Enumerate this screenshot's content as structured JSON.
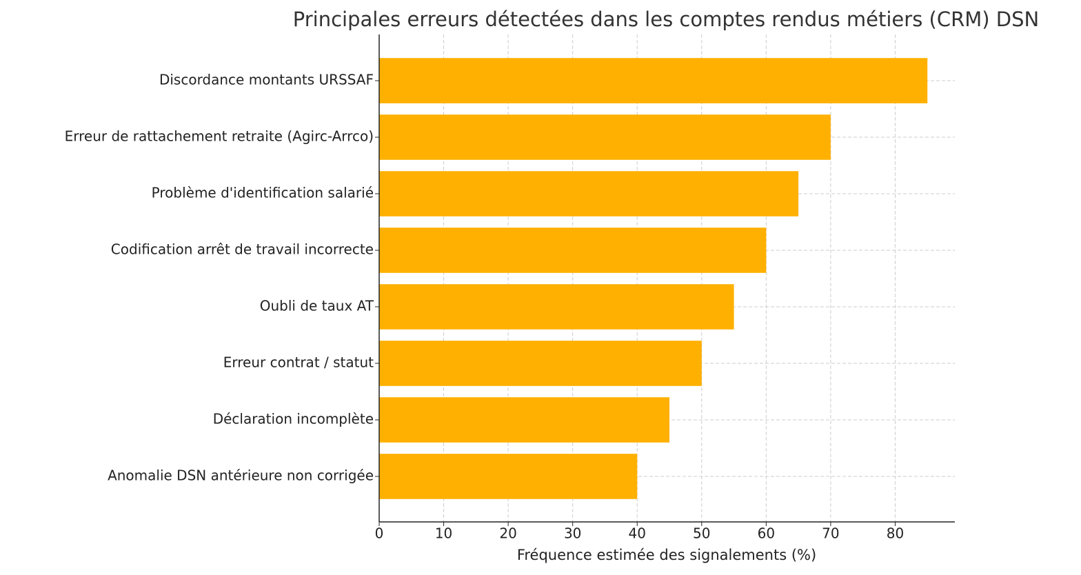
{
  "chart_data": {
    "type": "bar",
    "orientation": "horizontal",
    "title": "Principales erreurs détectées dans les comptes rendus métiers (CRM) DSN",
    "x_label": "Fréquence estimée des signalements (%)",
    "categories": [
      "Discordance montants URSSAF",
      "Erreur de rattachement retraite (Agirc-Arrco)",
      "Problème d'identification salarié",
      "Codification arrêt de travail incorrecte",
      "Oubli de taux AT",
      "Erreur contrat / statut",
      "Déclaration incomplète",
      "Anomalie DSN antérieure non corrigée"
    ],
    "values": [
      85,
      70,
      65,
      60,
      55,
      50,
      45,
      40
    ],
    "color": "#ffb000",
    "xlim": [
      0,
      89.25
    ],
    "xticks": [
      0,
      10,
      20,
      30,
      40,
      50,
      60,
      70,
      80
    ],
    "grid": true
  }
}
